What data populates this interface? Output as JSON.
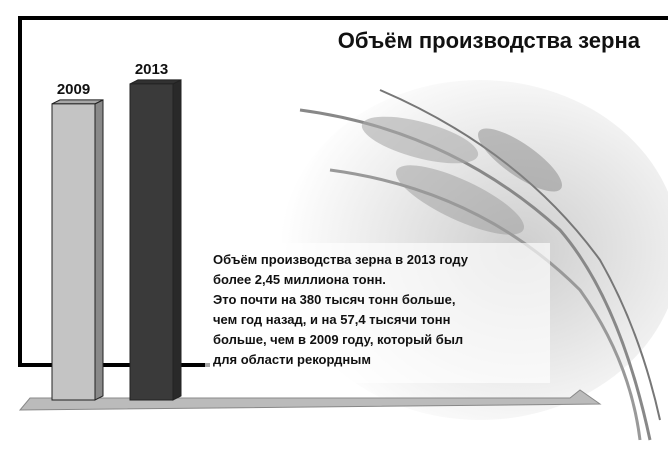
{
  "chart_data": {
    "type": "bar",
    "title": "Объём производства зерна",
    "categories": [
      "2009",
      "2013"
    ],
    "values": [
      2.39,
      2.45
    ],
    "colors": [
      "#c4c4c4",
      "#3a3a3a"
    ],
    "ylim": [
      1.5,
      2.6
    ],
    "note_lines": [
      "Объём производства зерна в 2013 году",
      "более 2,45 миллиона тонн.",
      "Это почти на 380 тысяч тонн больше,",
      "чем год назад, и на 57,4 тысячи тонн",
      "больше, чем в 2009 году, который был",
      "для области рекордным"
    ]
  }
}
